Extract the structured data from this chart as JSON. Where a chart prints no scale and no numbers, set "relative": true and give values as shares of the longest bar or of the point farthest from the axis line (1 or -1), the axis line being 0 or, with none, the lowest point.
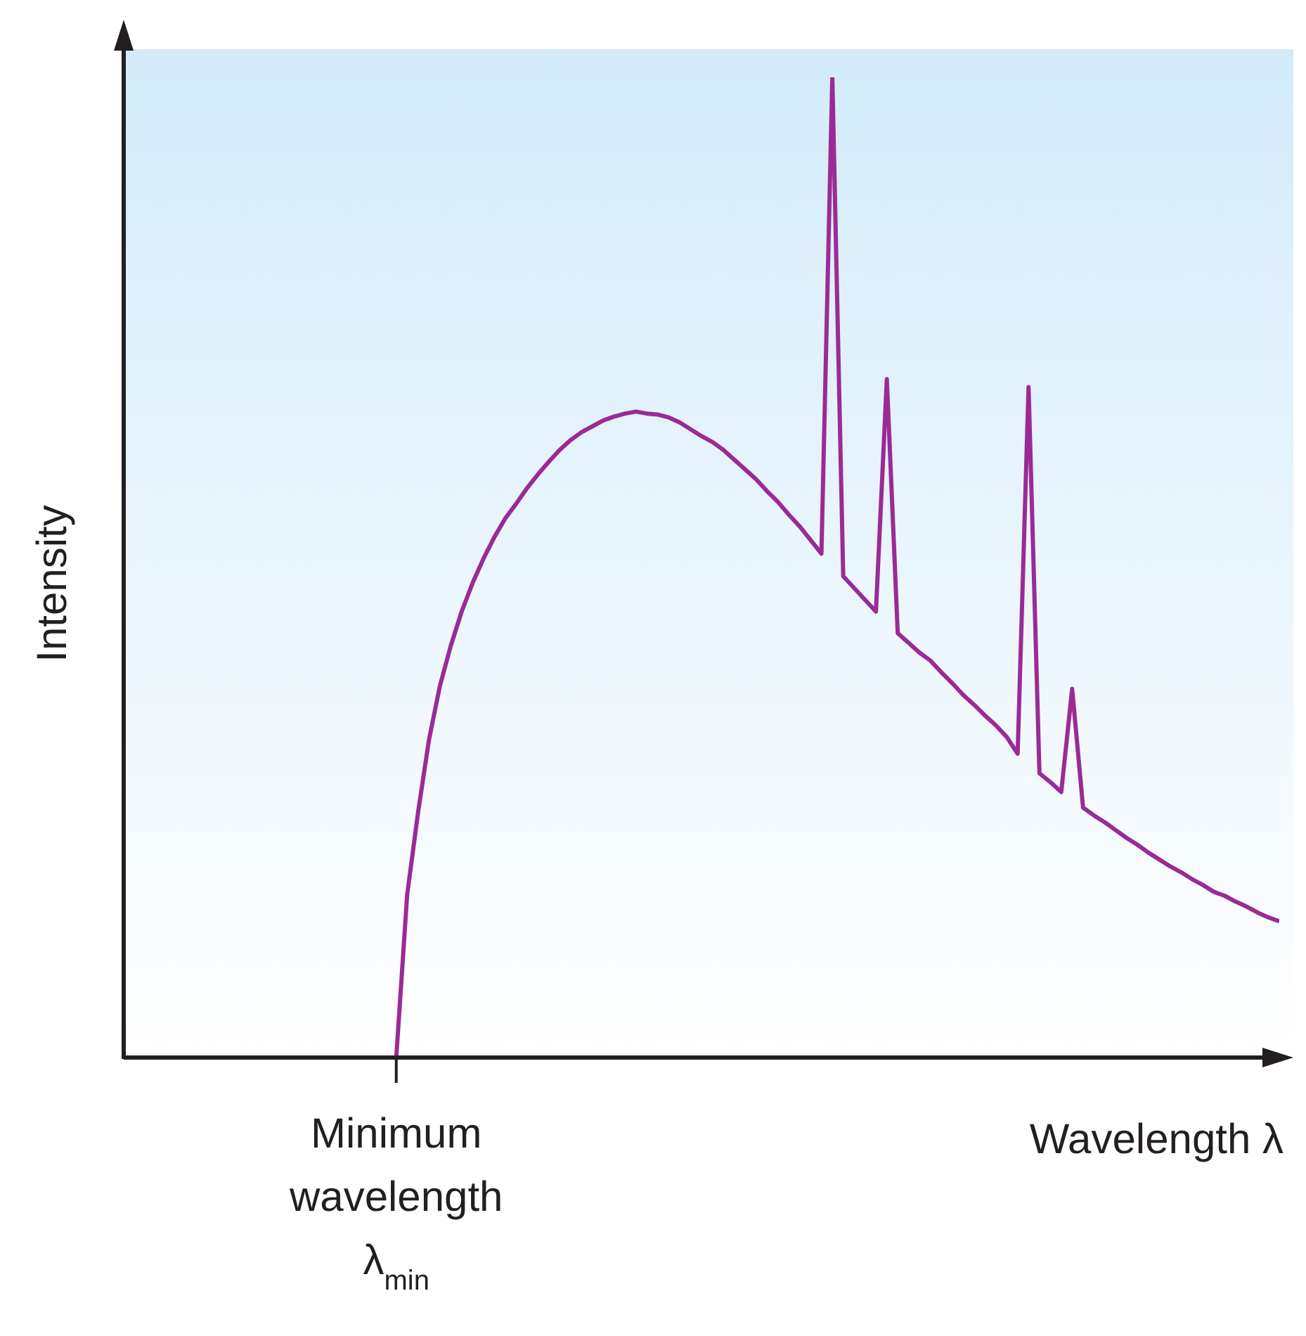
{
  "chart_data": {
    "type": "line",
    "relative": true,
    "xlabel": "Wavelength λ",
    "ylabel": "Intensity",
    "categories": [
      null,
      null,
      null,
      null,
      null,
      null,
      null,
      null,
      null,
      null,
      null,
      null,
      null,
      null,
      null,
      null,
      null,
      null,
      null,
      null,
      null,
      null,
      null,
      null,
      null,
      null,
      null,
      null,
      null,
      null,
      null,
      null,
      null,
      null,
      null,
      null,
      null,
      null,
      null,
      null,
      null,
      null,
      null,
      null,
      null,
      null,
      null,
      null,
      null,
      null,
      null,
      null,
      null,
      null,
      null,
      null,
      null,
      null,
      null,
      null,
      null,
      null,
      null,
      null,
      null,
      null,
      null,
      null,
      null,
      null,
      null,
      null,
      null,
      null,
      null,
      null,
      null,
      null,
      null,
      null,
      null,
      null,
      null,
      null,
      null,
      null,
      null,
      null,
      null,
      null,
      null,
      null,
      null,
      null,
      null,
      null,
      null,
      null,
      null,
      null,
      null,
      null,
      null,
      null,
      null,
      null,
      null
    ],
    "series": [
      {
        "color": "#9b2a96",
        "values": [
          null,
          null,
          null,
          null,
          null,
          null,
          null,
          null,
          null,
          null,
          null,
          null,
          null,
          null,
          null,
          null,
          null,
          null,
          null,
          null,
          null,
          null,
          null,
          null,
          null,
          0,
          0.166,
          0.25,
          0.324,
          0.379,
          0.42,
          0.455,
          0.484,
          0.509,
          0.531,
          0.55,
          0.565,
          0.581,
          0.595,
          0.608,
          0.62,
          0.63,
          0.638,
          0.644,
          0.65,
          0.654,
          0.657,
          0.659,
          0.657,
          0.656,
          0.653,
          0.648,
          0.641,
          0.634,
          0.628,
          0.62,
          0.61,
          0.6,
          0.59,
          0.578,
          0.567,
          0.554,
          0.542,
          0.528,
          0.514,
          1,
          0.491,
          0.479,
          0.467,
          0.455,
          0.692,
          0.433,
          0.423,
          0.413,
          0.405,
          0.393,
          0.382,
          0.37,
          0.36,
          0.349,
          0.339,
          0.327,
          0.31,
          0.684,
          0.29,
          0.281,
          0.271,
          0.376,
          0.255,
          0.247,
          0.24,
          0.232,
          0.224,
          0.217,
          0.209,
          0.202,
          0.195,
          0.189,
          0.182,
          0.176,
          0.169,
          0.165,
          0.159,
          0.154,
          0.148,
          0.143,
          0.139
        ]
      }
    ],
    "annotations": [
      "Minimum wavelength λ$_{min}$"
    ],
    "marker": "none",
    "line_style": "solid",
    "grid": false
  }
}
